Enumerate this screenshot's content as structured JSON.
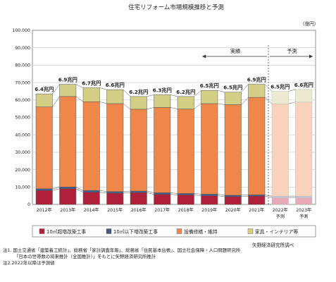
{
  "chart_data": {
    "type": "bar",
    "title": "住宅リフォーム市場規模推移と予測",
    "unit_label": "（億円）",
    "ylim": [
      0,
      100000
    ],
    "yticks": [
      "0",
      "10,000",
      "20,000",
      "30,000",
      "40,000",
      "50,000",
      "60,000",
      "70,000",
      "80,000",
      "90,000",
      "100,000"
    ],
    "categories": [
      "2012年",
      "2013年",
      "2014年",
      "2015年",
      "2016年",
      "2017年",
      "2018年",
      "2019年",
      "2020年",
      "2021年",
      "2022年",
      "2023年"
    ],
    "category_sublabels": [
      "",
      "",
      "",
      "",
      "",
      "",
      "",
      "",
      "",
      "",
      "予測",
      "予測"
    ],
    "forecast_from_index": 10,
    "series": [
      {
        "name": "10㎡超増改築工事",
        "values": [
          8000,
          9000,
          7000,
          6500,
          6800,
          5800,
          5500,
          5000,
          4500,
          4800,
          4000,
          4000
        ]
      },
      {
        "name": "10㎡以下増改築工事",
        "values": [
          1000,
          1000,
          1000,
          900,
          900,
          900,
          800,
          900,
          800,
          700,
          800,
          800
        ]
      },
      {
        "name": "設備修繕・維持",
        "values": [
          47000,
          52000,
          51000,
          50500,
          47000,
          49000,
          48500,
          52000,
          52000,
          56000,
          53000,
          54000
        ]
      },
      {
        "name": "家具・インテリア等",
        "values": [
          7500,
          7000,
          8000,
          8000,
          7300,
          7300,
          7200,
          7600,
          7200,
          7500,
          7200,
          7200
        ]
      }
    ],
    "totals_labels": [
      "6.4兆円",
      "6.9兆円",
      "6.7兆円",
      "6.6兆円",
      "6.2兆円",
      "6.3兆円",
      "6.2兆円",
      "6.5兆円",
      "6.5兆円",
      "6.9兆円",
      "6.5兆円",
      "6.6兆円"
    ],
    "colors": {
      "s1": "#b0203a",
      "s2": "#3f5d8f",
      "s3": "#f0874a",
      "s4": "#d4cf86",
      "s1_fc": "#e6aab6",
      "s2_fc": "#c2cbe0",
      "s3_fc": "#f9d2bb",
      "s4_fc": "#ecebd2"
    },
    "period_labels": {
      "actual": "実績",
      "forecast": "予測"
    }
  },
  "source": "矢野経済研究所調べ",
  "notes": [
    "注1. 国土交通省「建築着工統計」、総務省「家計調査年報」、総務省「住民基本台帳」、国立社会保障・人口問題研究所",
    "「日本の世帯数の将来推計（全国推計）」をもとに矢野経済研究所推計",
    "注2.2022年以降は予測値"
  ]
}
